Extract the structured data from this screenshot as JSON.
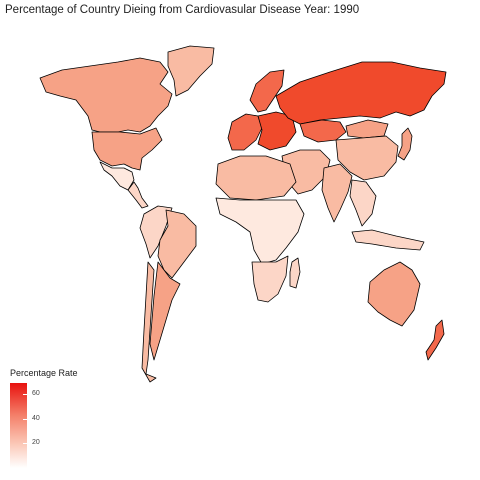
{
  "title": "Percentage of Country Dieing from Cardiovasular Disease Year: 1990",
  "legend": {
    "title": "Percentage Rate",
    "ticks": [
      "60",
      "40",
      "20"
    ],
    "low_color": "#ffffff",
    "high_color": "#e8120f"
  },
  "colors": {
    "very_high": "#f04a2c",
    "high": "#f3684b",
    "mid_high": "#f4896a",
    "mid": "#f6a286",
    "low_mid": "#f9bba3",
    "low": "#fcd6c7",
    "very_low": "#fee9df",
    "outline": "#000000"
  },
  "regions": [
    {
      "name": "Canada",
      "level": "mid"
    },
    {
      "name": "Greenland",
      "level": "low_mid"
    },
    {
      "name": "United States",
      "level": "mid"
    },
    {
      "name": "Mexico",
      "level": "very_low"
    },
    {
      "name": "Central America",
      "level": "low"
    },
    {
      "name": "Brazil",
      "level": "low_mid"
    },
    {
      "name": "Argentina",
      "level": "mid"
    },
    {
      "name": "Chile",
      "level": "low_mid"
    },
    {
      "name": "Andean South America",
      "level": "low"
    },
    {
      "name": "Western Europe",
      "level": "high"
    },
    {
      "name": "Eastern Europe",
      "level": "very_high"
    },
    {
      "name": "Scandinavia",
      "level": "high"
    },
    {
      "name": "Russia",
      "level": "very_high"
    },
    {
      "name": "Kazakhstan",
      "level": "high"
    },
    {
      "name": "Mongolia",
      "level": "mid"
    },
    {
      "name": "China",
      "level": "low_mid"
    },
    {
      "name": "Middle East",
      "level": "low_mid"
    },
    {
      "name": "India",
      "level": "low_mid"
    },
    {
      "name": "Southeast Asia",
      "level": "low"
    },
    {
      "name": "Japan",
      "level": "mid"
    },
    {
      "name": "North Africa",
      "level": "low_mid"
    },
    {
      "name": "Sub-Saharan Africa",
      "level": "very_low"
    },
    {
      "name": "Southern Africa",
      "level": "low"
    },
    {
      "name": "Madagascar",
      "level": "low"
    },
    {
      "name": "Indonesia",
      "level": "low"
    },
    {
      "name": "Australia",
      "level": "mid"
    },
    {
      "name": "New Zealand",
      "level": "high"
    }
  ]
}
